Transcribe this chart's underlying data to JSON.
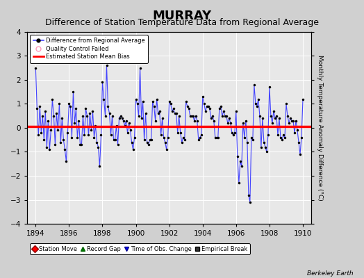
{
  "title": "MURRAY",
  "subtitle": "Difference of Station Temperature Data from Regional Average",
  "ylabel_right": "Monthly Temperature Anomaly Difference (°C)",
  "watermark": "Berkeley Earth",
  "xlim": [
    1893.5,
    1910.5
  ],
  "ylim": [
    -4,
    4
  ],
  "yticks": [
    -4,
    -3,
    -2,
    -1,
    0,
    1,
    2,
    3,
    4
  ],
  "xticks": [
    1894,
    1896,
    1898,
    1900,
    1902,
    1904,
    1906,
    1908,
    1910
  ],
  "bias_value": 0.05,
  "line_color": "#4444ff",
  "marker_color": "#000000",
  "bias_color": "#ff0000",
  "fig_bg_color": "#d0d0d0",
  "plot_bg_color": "#e8e8e8",
  "title_fontsize": 13,
  "subtitle_fontsize": 9,
  "data_x": [
    1894.0,
    1894.083,
    1894.167,
    1894.25,
    1894.333,
    1894.417,
    1894.5,
    1894.583,
    1894.667,
    1894.75,
    1894.833,
    1894.917,
    1895.0,
    1895.083,
    1895.167,
    1895.25,
    1895.333,
    1895.417,
    1895.5,
    1895.583,
    1895.667,
    1895.75,
    1895.833,
    1895.917,
    1896.0,
    1896.083,
    1896.167,
    1896.25,
    1896.333,
    1896.417,
    1896.5,
    1896.583,
    1896.667,
    1896.75,
    1896.833,
    1896.917,
    1897.0,
    1897.083,
    1897.167,
    1897.25,
    1897.333,
    1897.417,
    1897.5,
    1897.583,
    1897.667,
    1897.75,
    1897.833,
    1897.917,
    1898.0,
    1898.083,
    1898.167,
    1898.25,
    1898.333,
    1898.417,
    1898.5,
    1898.583,
    1898.667,
    1898.75,
    1898.833,
    1898.917,
    1899.0,
    1899.083,
    1899.167,
    1899.25,
    1899.333,
    1899.417,
    1899.5,
    1899.583,
    1899.667,
    1899.75,
    1899.833,
    1899.917,
    1900.0,
    1900.083,
    1900.167,
    1900.25,
    1900.333,
    1900.417,
    1900.5,
    1900.583,
    1900.667,
    1900.75,
    1900.833,
    1900.917,
    1901.0,
    1901.083,
    1901.167,
    1901.25,
    1901.333,
    1901.417,
    1901.5,
    1901.583,
    1901.667,
    1901.75,
    1901.833,
    1901.917,
    1902.0,
    1902.083,
    1902.167,
    1902.25,
    1902.333,
    1902.417,
    1902.5,
    1902.583,
    1902.667,
    1902.75,
    1902.833,
    1902.917,
    1903.0,
    1903.083,
    1903.167,
    1903.25,
    1903.333,
    1903.417,
    1903.5,
    1903.583,
    1903.667,
    1903.75,
    1903.833,
    1903.917,
    1904.0,
    1904.083,
    1904.167,
    1904.25,
    1904.333,
    1904.417,
    1904.5,
    1904.583,
    1904.667,
    1904.75,
    1904.833,
    1904.917,
    1905.0,
    1905.083,
    1905.167,
    1905.25,
    1905.333,
    1905.417,
    1905.5,
    1905.583,
    1905.667,
    1905.75,
    1905.833,
    1905.917,
    1906.0,
    1906.083,
    1906.167,
    1906.25,
    1906.333,
    1906.417,
    1906.5,
    1906.583,
    1906.667,
    1906.75,
    1906.833,
    1906.917,
    1907.0,
    1907.083,
    1907.167,
    1907.25,
    1907.333,
    1907.417,
    1907.5,
    1907.583,
    1907.667,
    1907.75,
    1907.833,
    1907.917,
    1908.0,
    1908.083,
    1908.167,
    1908.25,
    1908.333,
    1908.417,
    1908.5,
    1908.583,
    1908.667,
    1908.75,
    1908.833,
    1908.917,
    1909.0,
    1909.083,
    1909.167,
    1909.25,
    1909.333,
    1909.417,
    1909.5,
    1909.583,
    1909.667,
    1909.75,
    1909.833,
    1909.917,
    1910.0
  ],
  "data_y": [
    2.5,
    0.8,
    -0.3,
    0.9,
    -0.2,
    0.5,
    -0.5,
    0.7,
    -0.8,
    0.3,
    -0.9,
    -0.1,
    1.2,
    0.5,
    -0.7,
    0.6,
    -0.1,
    1.0,
    -0.6,
    0.4,
    -0.5,
    -0.9,
    -1.4,
    -0.2,
    1.0,
    0.9,
    -0.4,
    1.5,
    0.2,
    0.8,
    -0.4,
    0.3,
    -0.7,
    -0.7,
    0.5,
    -0.3,
    0.8,
    0.5,
    -0.3,
    0.6,
    -0.1,
    0.7,
    -0.4,
    0.1,
    -0.6,
    -0.8,
    -1.6,
    -0.3,
    1.9,
    1.2,
    0.5,
    2.6,
    0.9,
    0.6,
    -0.3,
    0.5,
    -0.5,
    -0.5,
    0.1,
    -0.7,
    0.4,
    0.5,
    0.4,
    0.3,
    0.1,
    0.3,
    -0.2,
    0.2,
    -0.1,
    -0.6,
    -0.9,
    -0.4,
    1.2,
    1.0,
    0.5,
    2.5,
    0.4,
    1.1,
    -0.5,
    0.6,
    -0.6,
    -0.7,
    -0.5,
    -0.5,
    1.1,
    0.9,
    0.3,
    1.2,
    0.6,
    0.7,
    -0.3,
    0.4,
    -0.4,
    -0.6,
    -0.9,
    -0.4,
    1.1,
    1.0,
    0.7,
    0.8,
    0.6,
    0.6,
    -0.2,
    0.5,
    -0.2,
    -0.6,
    -0.4,
    -0.5,
    1.1,
    0.9,
    0.8,
    0.5,
    0.5,
    0.5,
    0.3,
    0.5,
    0.3,
    -0.5,
    -0.4,
    -0.3,
    1.3,
    1.0,
    0.7,
    0.9,
    0.9,
    0.8,
    0.4,
    0.5,
    0.3,
    -0.4,
    -0.4,
    -0.4,
    0.8,
    0.9,
    0.5,
    0.7,
    0.5,
    0.5,
    0.2,
    0.4,
    0.2,
    -0.2,
    -0.3,
    -0.2,
    0.7,
    -1.2,
    -2.3,
    -1.4,
    -1.6,
    0.2,
    -0.4,
    0.3,
    -0.6,
    -2.8,
    -3.1,
    -0.4,
    -0.5,
    1.8,
    1.0,
    0.9,
    1.2,
    0.5,
    -0.8,
    0.4,
    -0.6,
    -0.8,
    -1.0,
    -0.3,
    1.7,
    0.5,
    0.2,
    0.7,
    0.4,
    0.5,
    -0.3,
    0.4,
    -0.4,
    -0.5,
    -0.3,
    -0.4,
    1.0,
    0.5,
    0.2,
    0.4,
    0.3,
    0.3,
    -0.2,
    0.3,
    -0.1,
    -0.6,
    -1.1,
    -0.4,
    1.2
  ]
}
